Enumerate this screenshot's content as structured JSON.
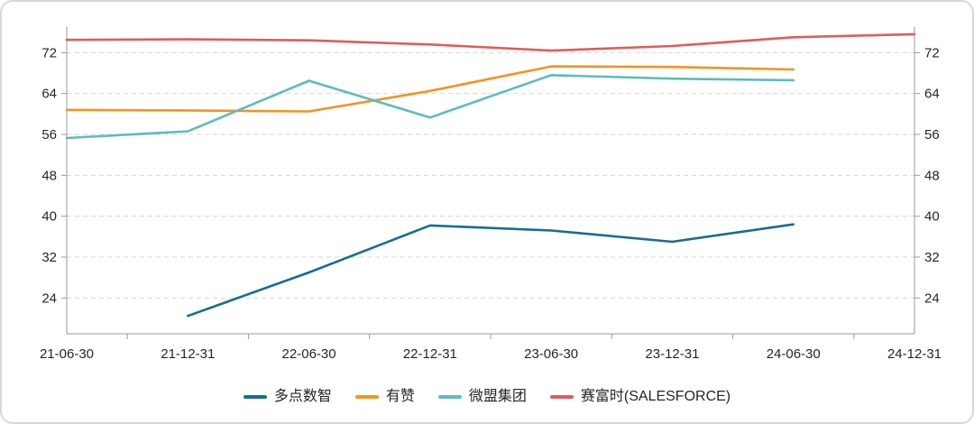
{
  "chart_data": {
    "type": "line",
    "title": "",
    "xlabel": "",
    "ylabel": "",
    "x": [
      "21-06-30",
      "21-12-31",
      "22-06-30",
      "22-12-31",
      "23-06-30",
      "23-12-31",
      "24-06-30",
      "24-12-31"
    ],
    "series": [
      {
        "name": "多点数智",
        "color": "#176d93",
        "values": [
          null,
          20.5,
          29.0,
          38.2,
          37.2,
          35.0,
          38.4,
          null
        ]
      },
      {
        "name": "有赞",
        "color": "#f6921e",
        "values": [
          60.8,
          60.7,
          60.5,
          64.5,
          69.3,
          69.2,
          68.7,
          null
        ]
      },
      {
        "name": "微盟集团",
        "color": "#5cbdb9",
        "values": [
          55.3,
          56.6,
          66.5,
          59.3,
          67.6,
          66.9,
          66.6,
          null
        ]
      },
      {
        "name": "赛富时(SALESFORCE)",
        "color": "#e05c5c",
        "values": [
          74.5,
          74.6,
          74.4,
          73.6,
          72.4,
          73.3,
          75.0,
          75.6
        ]
      }
    ],
    "yticks": [
      24,
      32,
      40,
      48,
      56,
      64,
      72
    ],
    "ylim": [
      17,
      77
    ],
    "grid": "dashed-horizontal",
    "legend_position": "bottom",
    "y_axis_sides": [
      "left",
      "right"
    ]
  },
  "style": {
    "grid_color": "#d6d6d6",
    "axis_color": "#999999",
    "label_color": "#262626",
    "background": "#ffffff",
    "border_color": "#d8d8d8"
  }
}
